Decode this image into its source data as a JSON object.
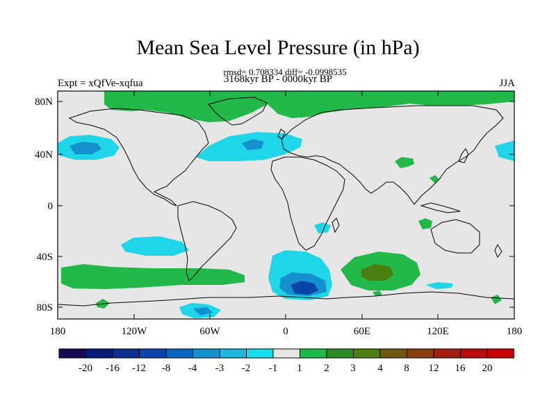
{
  "title": "Mean Sea Level Pressure (in hPa)",
  "stats": "rmsd= 0.708334 diff= -0.0998535",
  "experiment": "Expt = xQfVe-xqfua",
  "period": "3168kyr BP - 0000kyr BP",
  "season": "JJA",
  "axes": {
    "y_ticks": [
      "80N",
      "40N",
      "0",
      "40S",
      "80S"
    ],
    "x_ticks": [
      "180",
      "120W",
      "60W",
      "0",
      "60E",
      "120E",
      "180"
    ]
  },
  "colorbar": {
    "labels": [
      "-20",
      "-16",
      "-12",
      "-8",
      "-4",
      "-3",
      "-2",
      "-1",
      "1",
      "2",
      "3",
      "4",
      "8",
      "12",
      "16",
      "20"
    ],
    "colors": [
      "#1a0a55",
      "#0b1a78",
      "#0d2f8f",
      "#0a44a8",
      "#0a64c0",
      "#1590cf",
      "#1fb7dd",
      "#15ddea",
      "#e6e6e6",
      "#1fb84a",
      "#2b8a25",
      "#4c7f12",
      "#6d5a10",
      "#8a3c0e",
      "#a51d0c",
      "#b80e0b",
      "#cc0000"
    ]
  },
  "map": {
    "background": "#e6e6e6",
    "green": "#22b84a",
    "cyan": "#1fd6e8",
    "blue": "#1590cf",
    "dark_blue": "#0a44a8",
    "olive": "#4c7f12"
  }
}
